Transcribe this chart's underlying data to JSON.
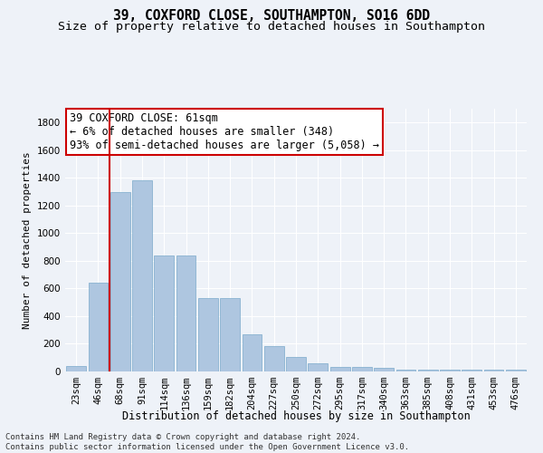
{
  "title": "39, COXFORD CLOSE, SOUTHAMPTON, SO16 6DD",
  "subtitle": "Size of property relative to detached houses in Southampton",
  "xlabel": "Distribution of detached houses by size in Southampton",
  "ylabel": "Number of detached properties",
  "categories": [
    "23sqm",
    "46sqm",
    "68sqm",
    "91sqm",
    "114sqm",
    "136sqm",
    "159sqm",
    "182sqm",
    "204sqm",
    "227sqm",
    "250sqm",
    "272sqm",
    "295sqm",
    "317sqm",
    "340sqm",
    "363sqm",
    "385sqm",
    "408sqm",
    "431sqm",
    "453sqm",
    "476sqm"
  ],
  "values": [
    40,
    640,
    1300,
    1380,
    840,
    840,
    530,
    530,
    270,
    185,
    105,
    60,
    30,
    30,
    25,
    15,
    12,
    12,
    12,
    10,
    10
  ],
  "bar_color": "#aec6e0",
  "bar_edgecolor": "#7aaaca",
  "marker_color": "#cc0000",
  "annotation_text": "39 COXFORD CLOSE: 61sqm\n← 6% of detached houses are smaller (348)\n93% of semi-detached houses are larger (5,058) →",
  "annotation_box_facecolor": "#ffffff",
  "annotation_box_edgecolor": "#cc0000",
  "footnote": "Contains HM Land Registry data © Crown copyright and database right 2024.\nContains public sector information licensed under the Open Government Licence v3.0.",
  "ylim": [
    0,
    1900
  ],
  "yticks": [
    0,
    200,
    400,
    600,
    800,
    1000,
    1200,
    1400,
    1600,
    1800
  ],
  "background_color": "#eef2f8",
  "grid_color": "#ffffff",
  "title_fontsize": 10.5,
  "subtitle_fontsize": 9.5,
  "xlabel_fontsize": 8.5,
  "ylabel_fontsize": 8,
  "tick_fontsize": 7.5,
  "annotation_fontsize": 8.5,
  "footnote_fontsize": 6.5
}
